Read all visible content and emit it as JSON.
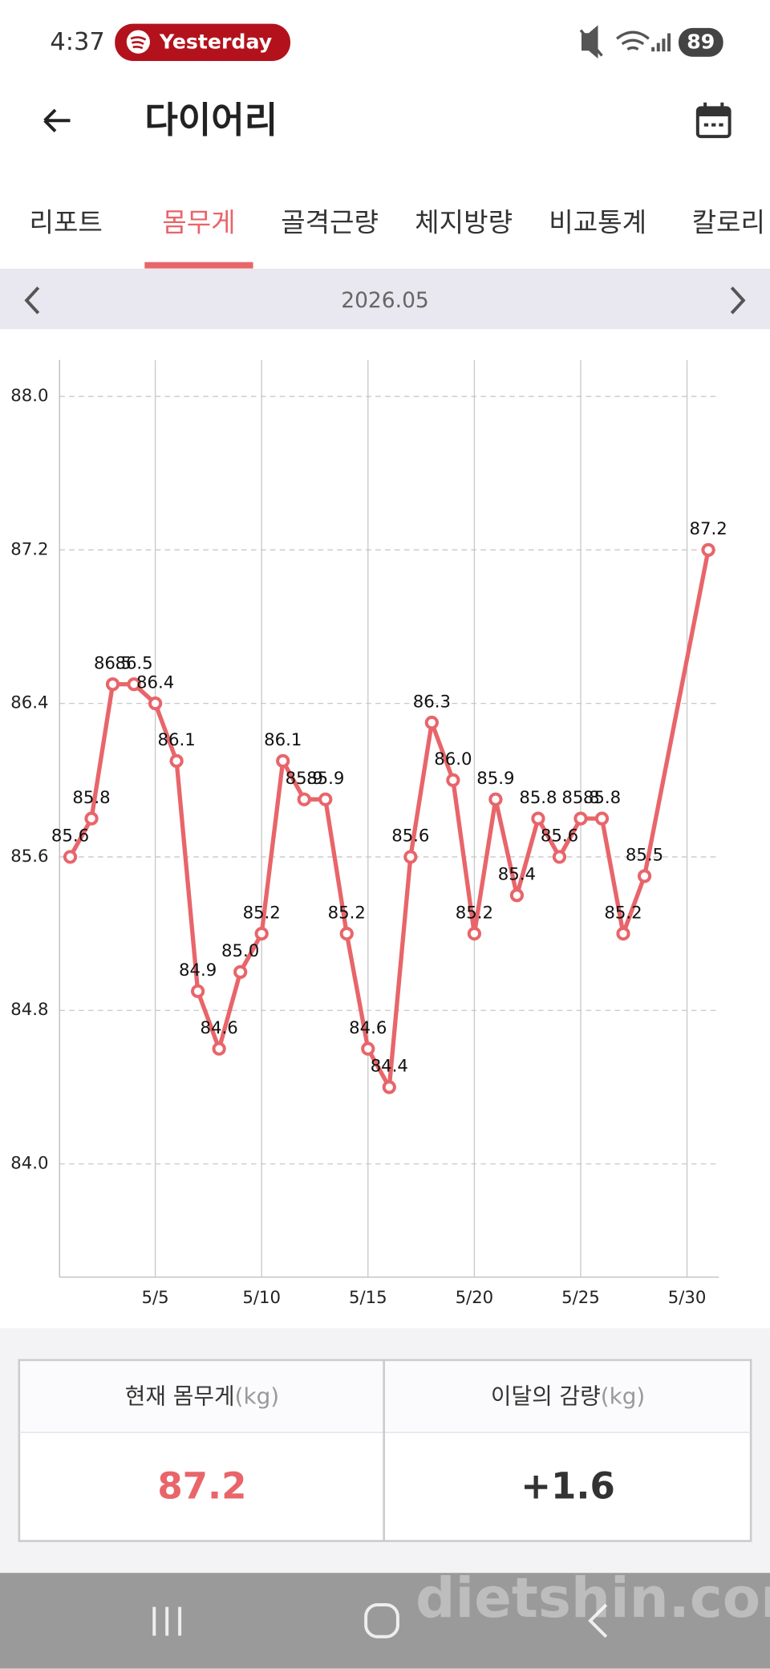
{
  "status_bar": {
    "time": "4:37",
    "media": "Yesterday",
    "battery": "89"
  },
  "header": {
    "title": "다이어리"
  },
  "tabs": [
    "리포트",
    "몸무게",
    "골격근량",
    "체지방량",
    "비교통계",
    "칼로리"
  ],
  "active_tab": 1,
  "month": "2026.05",
  "chart_data": {
    "type": "line",
    "color": "#e8656a",
    "x": [
      1,
      2,
      3,
      4,
      5,
      6,
      7,
      8,
      9,
      10,
      11,
      12,
      13,
      14,
      15,
      16,
      17,
      18,
      19,
      20,
      21,
      22,
      23,
      24,
      25,
      26,
      27,
      28,
      31
    ],
    "values": [
      85.6,
      85.8,
      86.5,
      86.5,
      86.4,
      86.1,
      84.9,
      84.6,
      85.0,
      85.2,
      86.1,
      85.9,
      85.9,
      85.2,
      84.6,
      84.4,
      85.6,
      86.3,
      86.0,
      85.2,
      85.9,
      85.4,
      85.8,
      85.6,
      85.8,
      85.8,
      85.2,
      85.5,
      87.2
    ],
    "value_labels": [
      "85.6",
      "85.8",
      "86.5",
      "86.5",
      "86.4",
      "86.1",
      "84.9",
      "84.6",
      "85.0",
      "85.2",
      "86.1",
      "85.9",
      "85.9",
      "85.2",
      "84.6",
      "84.4",
      "85.6",
      "86.3",
      "86.0",
      "85.2",
      "85.9",
      "85.4",
      "85.8",
      "85.6",
      "85.8",
      "85.8",
      "85.2",
      "85.5",
      "87.2"
    ],
    "xlim": [
      0.5,
      31.5
    ],
    "xticks": [
      {
        "value": 5,
        "label": "5/5"
      },
      {
        "value": 10,
        "label": "5/10"
      },
      {
        "value": 15,
        "label": "5/15"
      },
      {
        "value": 20,
        "label": "5/20"
      },
      {
        "value": 25,
        "label": "5/25"
      },
      {
        "value": 30,
        "label": "5/30"
      }
    ],
    "ylim": [
      83.41,
      88.19
    ],
    "yticks": [
      {
        "value": 84,
        "label": "84.0"
      },
      84.8,
      85.6,
      86.4,
      87.2,
      {
        "value": 88,
        "label": "88.0"
      }
    ],
    "grid": true
  },
  "summary": [
    {
      "label": "현재 몸무게",
      "unit": "(kg)",
      "value": "87.2"
    },
    {
      "label": "이달의 감량",
      "unit": "(kg)",
      "value": "+1.6"
    }
  ],
  "watermark": "dietshin.com"
}
